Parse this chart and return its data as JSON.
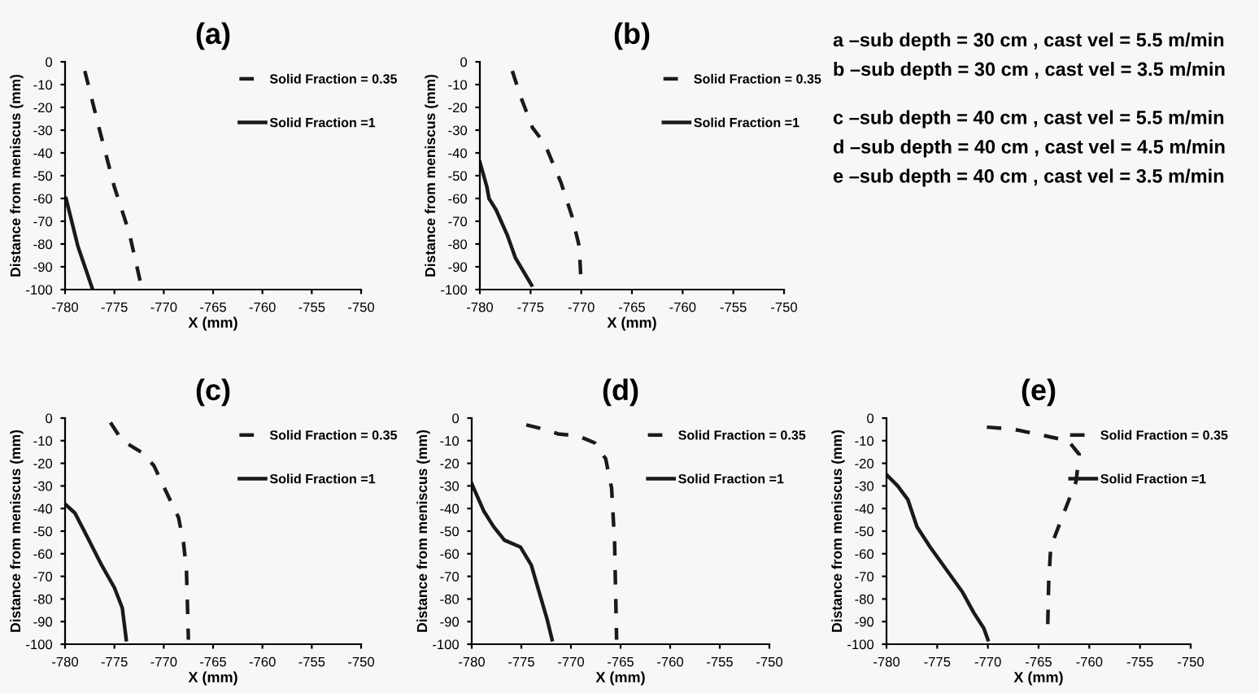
{
  "chart_data": [
    {
      "type": "line",
      "title": "(a)",
      "xlabel": "X (mm)",
      "ylabel": "Distance from meniscus (mm)",
      "xlim": [
        -780,
        -750
      ],
      "xticks": [
        -780,
        -775,
        -770,
        -765,
        -760,
        -755,
        -750
      ],
      "ylim": [
        -100,
        0
      ],
      "yticks": [
        0,
        -10,
        -20,
        -30,
        -40,
        -50,
        -60,
        -70,
        -80,
        -90,
        -100
      ],
      "grid": false,
      "legend": "top right",
      "series": [
        {
          "name": "Solid Fraction = 0.35",
          "color": "#1a1a1a",
          "line_style": "dashed",
          "x": [
            -778,
            -776.5,
            -775,
            -773.5,
            -772.3
          ],
          "values": [
            -4,
            -30,
            -55,
            -75,
            -98
          ]
        },
        {
          "name": "Solid Fraction =1",
          "color": "#1a1a1a",
          "line_style": "solid",
          "x": [
            -779.9,
            -778.7,
            -777.2
          ],
          "values": [
            -60,
            -81,
            -100
          ]
        }
      ]
    },
    {
      "type": "line",
      "title": "(b)",
      "xlabel": "X (mm)",
      "ylabel": "Distance from meniscus (mm)",
      "xlim": [
        -780,
        -750
      ],
      "xticks": [
        -780,
        -775,
        -770,
        -765,
        -760,
        -755,
        -750
      ],
      "ylim": [
        -100,
        0
      ],
      "yticks": [
        0,
        -10,
        -20,
        -30,
        -40,
        -50,
        -60,
        -70,
        -80,
        -90,
        -100
      ],
      "grid": false,
      "legend": "top right",
      "series": [
        {
          "name": "Solid Fraction = 0.35",
          "color": "#1a1a1a",
          "line_style": "dashed",
          "x": [
            -776.8,
            -776,
            -774.8,
            -773.6,
            -772,
            -770.9,
            -770.2,
            -770
          ],
          "values": [
            -4,
            -15,
            -29,
            -36,
            -53,
            -68,
            -81,
            -98
          ]
        },
        {
          "name": "Solid Fraction =1",
          "color": "#1a1a1a",
          "line_style": "solid",
          "x": [
            -780,
            -779.3,
            -779.1,
            -778.4,
            -777.3,
            -776.5,
            -774.9
          ],
          "values": [
            -44,
            -55,
            -60,
            -65,
            -76,
            -86,
            -98
          ]
        }
      ]
    },
    {
      "type": "other",
      "annotations": [
        "a –sub depth = 30 cm , cast vel = 5.5 m/min",
        "b –sub depth = 30 cm , cast vel = 3.5 m/min",
        "c –sub depth = 40 cm , cast vel = 5.5 m/min",
        "d –sub depth = 40 cm , cast vel = 4.5 m/min",
        "e –sub depth = 40 cm , cast vel = 3.5 m/min"
      ]
    },
    {
      "type": "line",
      "title": "(c)",
      "xlabel": "X (mm)",
      "ylabel": "Distance from meniscus (mm)",
      "xlim": [
        -780,
        -750
      ],
      "xticks": [
        -780,
        -775,
        -770,
        -765,
        -760,
        -755,
        -750
      ],
      "ylim": [
        -100,
        0
      ],
      "yticks": [
        0,
        -10,
        -20,
        -30,
        -40,
        -50,
        -60,
        -70,
        -80,
        -90,
        -100
      ],
      "grid": false,
      "legend": "top right",
      "series": [
        {
          "name": "Solid Fraction = 0.35",
          "color": "#1a1a1a",
          "line_style": "dashed",
          "x": [
            -775.4,
            -774.2,
            -772.3,
            -771,
            -769.6,
            -768.5,
            -768,
            -767.7,
            -767.5
          ],
          "values": [
            -2,
            -10,
            -15,
            -21,
            -34,
            -44,
            -55,
            -67,
            -98
          ]
        },
        {
          "name": "Solid Fraction =1",
          "color": "#1a1a1a",
          "line_style": "solid",
          "x": [
            -780,
            -779,
            -777.7,
            -776.3,
            -775,
            -774.2,
            -773.8
          ],
          "values": [
            -38,
            -42,
            -53,
            -65,
            -75,
            -84,
            -98
          ]
        }
      ]
    },
    {
      "type": "line",
      "title": "(d)",
      "xlabel": "X (mm)",
      "ylabel": "Distance from meniscus (mm)",
      "xlim": [
        -780,
        -750
      ],
      "xticks": [
        -780,
        -775,
        -770,
        -765,
        -760,
        -755,
        -750
      ],
      "ylim": [
        -100,
        0
      ],
      "yticks": [
        0,
        -10,
        -20,
        -30,
        -40,
        -50,
        -60,
        -70,
        -80,
        -90,
        -100
      ],
      "grid": false,
      "legend": "top right",
      "series": [
        {
          "name": "Solid Fraction = 0.35",
          "color": "#1a1a1a",
          "line_style": "dashed",
          "x": [
            -774.5,
            -772.7,
            -771.3,
            -769.2,
            -767.6,
            -766.5,
            -765.9,
            -765.6,
            -765.4
          ],
          "values": [
            -3,
            -5,
            -7,
            -8,
            -11,
            -18,
            -31,
            -55,
            -98
          ]
        },
        {
          "name": "Solid Fraction =1",
          "color": "#1a1a1a",
          "line_style": "solid",
          "x": [
            -780,
            -778.8,
            -777.8,
            -776.7,
            -775.1,
            -774,
            -773.2,
            -772.4,
            -771.9
          ],
          "values": [
            -29,
            -41,
            -48,
            -54,
            -57,
            -65,
            -77,
            -89,
            -98
          ]
        }
      ]
    },
    {
      "type": "line",
      "title": "(e)",
      "xlabel": "X (mm)",
      "ylabel": "Distance from meniscus (mm)",
      "xlim": [
        -780,
        -750
      ],
      "xticks": [
        -780,
        -775,
        -770,
        -765,
        -760,
        -755,
        -750
      ],
      "ylim": [
        -100,
        0
      ],
      "yticks": [
        0,
        -10,
        -20,
        -30,
        -40,
        -50,
        -60,
        -70,
        -80,
        -90,
        -100
      ],
      "grid": false,
      "legend": "top right",
      "series": [
        {
          "name": "Solid Fraction = 0.35",
          "color": "#1a1a1a",
          "line_style": "dashed",
          "x": [
            -770.1,
            -767.4,
            -764.2,
            -762.1,
            -761,
            -761.3,
            -762.6,
            -763.8,
            -764,
            -764.1
          ],
          "values": [
            -4,
            -5,
            -8,
            -10,
            -16,
            -28,
            -43,
            -57,
            -72,
            -92
          ]
        },
        {
          "name": "Solid Fraction =1",
          "color": "#1a1a1a",
          "line_style": "solid",
          "x": [
            -780,
            -778.9,
            -777.9,
            -777,
            -775.7,
            -774.1,
            -772.5,
            -771.4,
            -770.4,
            -770
          ],
          "values": [
            -25,
            -30,
            -36,
            -48,
            -57,
            -67,
            -77,
            -86,
            -93,
            -98
          ]
        }
      ]
    }
  ]
}
